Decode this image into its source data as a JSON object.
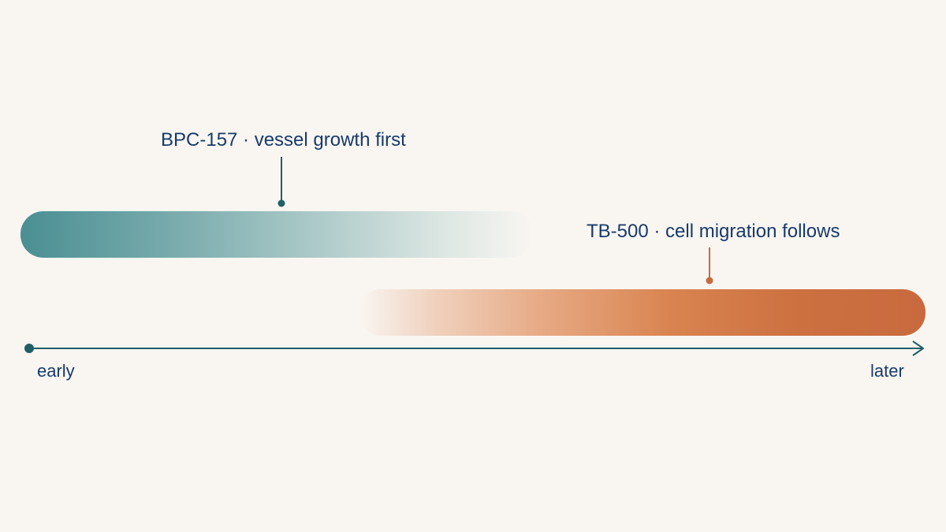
{
  "phases": [
    {
      "label": "BPC-157 · vessel growth first",
      "color": "#4a8f93"
    },
    {
      "label": "TB-500 · cell migration follows",
      "color": "#c86a3e"
    }
  ],
  "axis": {
    "start_label": "early",
    "end_label": "later",
    "color": "#1f5f66"
  },
  "text_color": "#173a6b",
  "background": "#f9f6f2"
}
